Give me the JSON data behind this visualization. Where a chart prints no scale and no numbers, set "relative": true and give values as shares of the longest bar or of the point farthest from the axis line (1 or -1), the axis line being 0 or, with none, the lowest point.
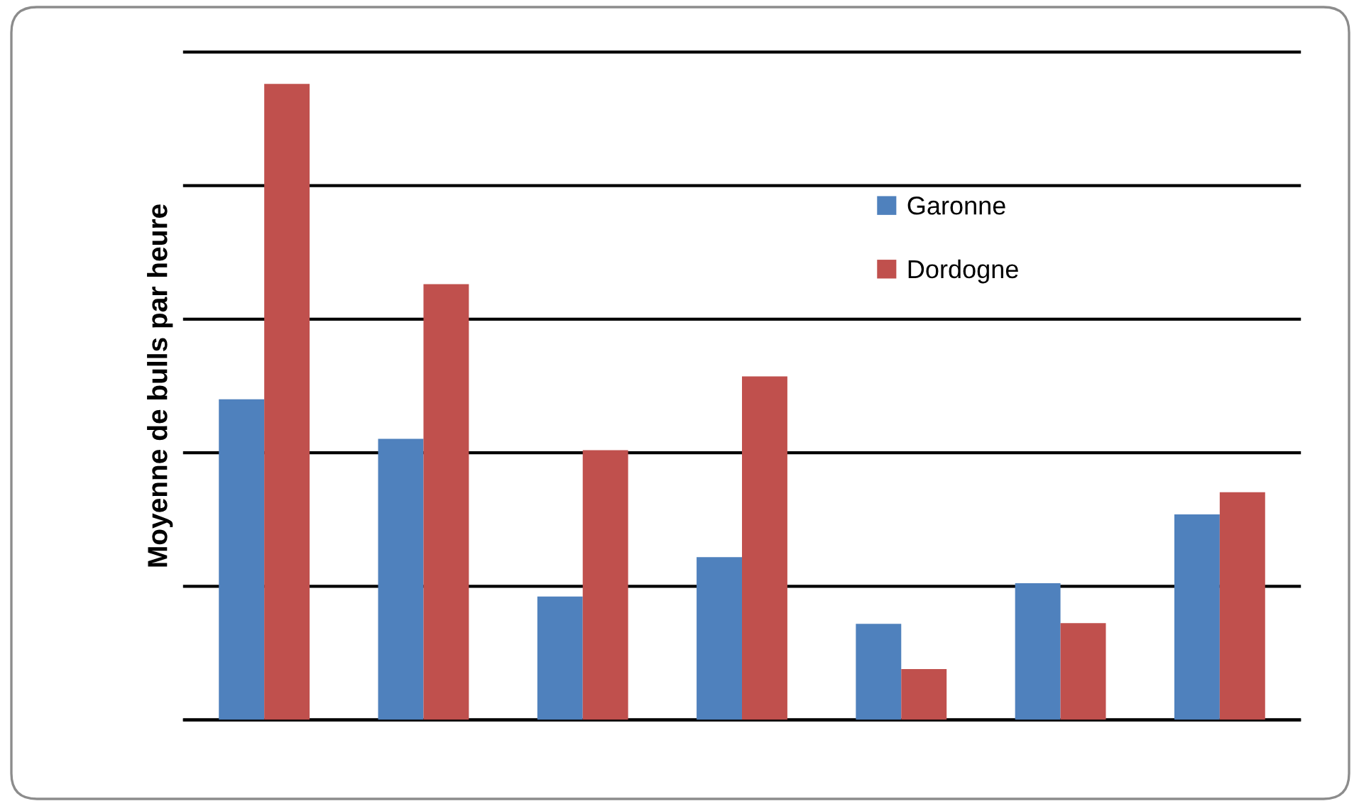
{
  "chart_data": {
    "type": "bar",
    "ylabel": "Moyenne de bulls par heure",
    "categories": [
      null,
      null,
      null,
      null,
      null,
      null,
      null
    ],
    "series": [
      {
        "name": "Garonne",
        "color": "#4f81bd",
        "values": [
          0.504,
          0.442,
          0.194,
          0.256,
          0.151,
          0.215,
          0.323
        ]
      },
      {
        "name": "Dordogne",
        "color": "#c0504d",
        "values": [
          1,
          0.685,
          0.424,
          0.54,
          0.08,
          0.152,
          0.358
        ]
      }
    ],
    "relative": true,
    "grid": "y",
    "legend": "top right"
  }
}
